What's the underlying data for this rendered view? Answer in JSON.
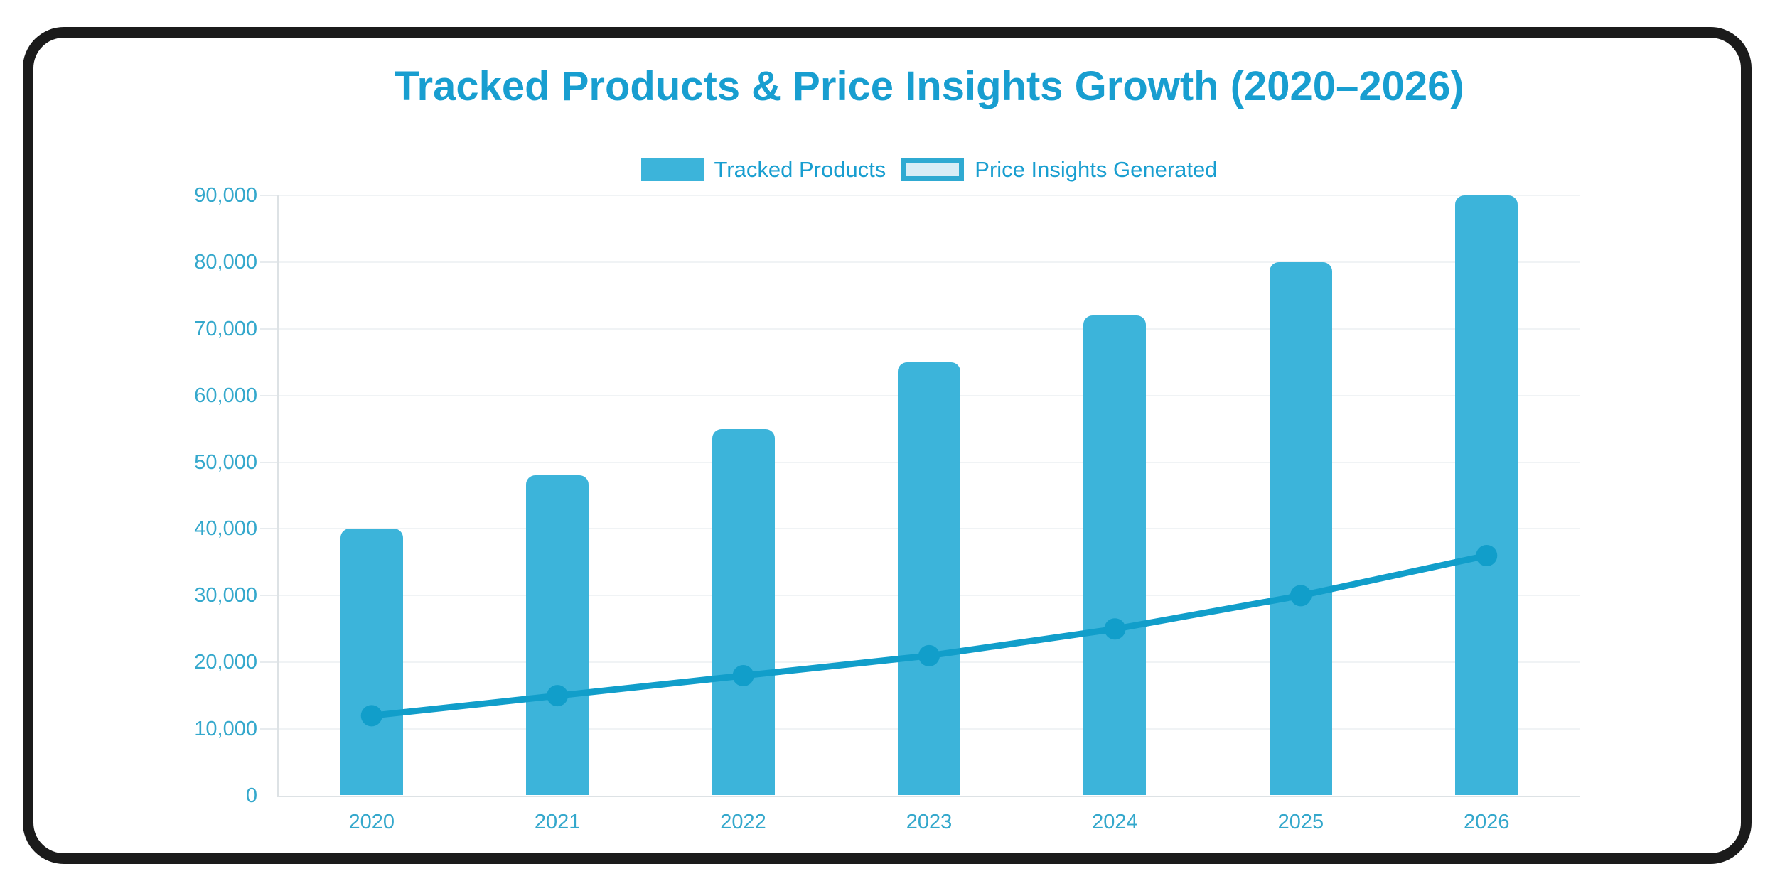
{
  "title": "Tracked Products & Price Insights Growth (2020–2026)",
  "legend": {
    "position": "top",
    "items": [
      {
        "label": "Tracked Products",
        "swatch": "solid-bar"
      },
      {
        "label": "Price Insights Generated",
        "swatch": "outlined-box"
      }
    ]
  },
  "chart_data": {
    "type": "combo",
    "categories": [
      "2020",
      "2021",
      "2022",
      "2023",
      "2024",
      "2025",
      "2026"
    ],
    "series": [
      {
        "name": "Tracked Products",
        "type": "bar",
        "values": [
          40000,
          48000,
          55000,
          65000,
          72000,
          80000,
          90000
        ]
      },
      {
        "name": "Price Insights Generated",
        "type": "line",
        "values": [
          12000,
          15000,
          18000,
          21000,
          25000,
          30000,
          36000
        ]
      }
    ],
    "title": "Tracked Products & Price Insights Growth (2020–2026)",
    "xlabel": "",
    "ylabel": "",
    "ylim": [
      0,
      90000
    ],
    "ytick_step": 10000,
    "ytick_labels": [
      "0",
      "10,000",
      "20,000",
      "30,000",
      "40,000",
      "50,000",
      "60,000",
      "70,000",
      "80,000",
      "90,000"
    ],
    "grid": true,
    "legend_position": "top"
  },
  "colors": {
    "bar": "#3CB4DA",
    "line": "#119ECA",
    "title_text": "#189ED0",
    "axis_label_text": "#34A8CC",
    "legend_text": "#189ED0",
    "legend_line_swatch_fill": "#D8EDF6",
    "legend_line_swatch_border": "#2FAAD2",
    "gridline": "#F0F3F5",
    "axis_line": "#DDE2E5",
    "frame": "#1B1B1B",
    "background": "#FFFFFF"
  }
}
